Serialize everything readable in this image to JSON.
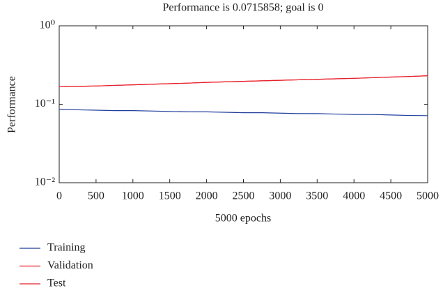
{
  "chart_data": {
    "type": "line",
    "title": "Performance is 0.0715858; goal is 0",
    "x_label": "5000 epochs",
    "y_label": "Performance",
    "x": [
      0,
      250,
      500,
      750,
      1000,
      1250,
      1500,
      1750,
      2000,
      2250,
      2500,
      2750,
      3000,
      3250,
      3500,
      3750,
      4000,
      4250,
      4500,
      4750,
      5000
    ],
    "series": [
      {
        "name": "Training",
        "color": "#1f3d9c",
        "values": [
          0.0867,
          0.085,
          0.084,
          0.083,
          0.083,
          0.082,
          0.081,
          0.08,
          0.08,
          0.079,
          0.078,
          0.078,
          0.077,
          0.076,
          0.076,
          0.075,
          0.074,
          0.074,
          0.073,
          0.072,
          0.0716
        ]
      },
      {
        "name": "Validation",
        "color": "#e8202a",
        "values": [
          0.167,
          0.169,
          0.171,
          0.174,
          0.177,
          0.18,
          0.183,
          0.186,
          0.19,
          0.193,
          0.196,
          0.199,
          0.202,
          0.205,
          0.208,
          0.211,
          0.214,
          0.218,
          0.222,
          0.226,
          0.231
        ]
      },
      {
        "name": "Test",
        "color": "#e8202a",
        "values": [
          0.167,
          0.169,
          0.171,
          0.174,
          0.177,
          0.18,
          0.183,
          0.186,
          0.19,
          0.193,
          0.196,
          0.199,
          0.202,
          0.205,
          0.208,
          0.211,
          0.214,
          0.218,
          0.222,
          0.226,
          0.231
        ]
      }
    ],
    "xlim": [
      0,
      5000
    ],
    "xticks": [
      0,
      500,
      1000,
      1500,
      2000,
      2500,
      3000,
      3500,
      4000,
      4500,
      5000
    ],
    "ylim": [
      0.01,
      1
    ],
    "yticks": [
      {
        "value": 0.01,
        "label": "10⁻²"
      },
      {
        "value": 0.1,
        "label": "10⁻¹"
      },
      {
        "value": 1,
        "label": "10⁰"
      }
    ],
    "y_scale": "log",
    "grid": false,
    "legend": "bottom-left"
  }
}
